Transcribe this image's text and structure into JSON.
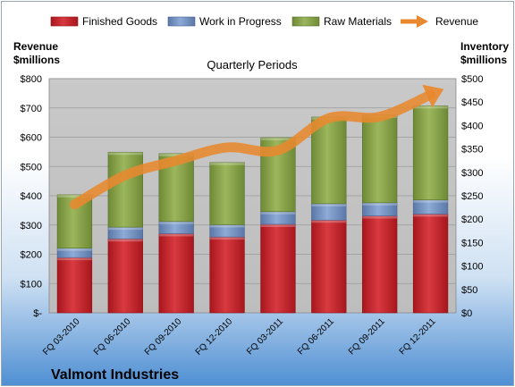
{
  "company": "Valmont Industries",
  "left_axis_title": [
    "Revenue",
    "$millions"
  ],
  "right_axis_title": [
    "Inventory",
    "$millions"
  ],
  "colors": {
    "finished_goods": "#c0262d",
    "work_in_progress": "#6f8fbf",
    "raw_materials": "#85a148",
    "revenue": "#e8892f",
    "plot_background": "#c3c3c3"
  },
  "chart_data": {
    "type": "bar",
    "stacked": true,
    "title": "Quarterly Periods",
    "categories": [
      "FQ 03-2010",
      "FQ 06-2010",
      "FQ 09-2010",
      "FQ 12-2010",
      "FQ 03-2011",
      "FQ 06-2011",
      "FQ 09-2011",
      "FQ 12-2011"
    ],
    "series": [
      {
        "name": "Finished Goods",
        "axis": "right",
        "values": [
          118,
          158,
          169,
          162,
          189,
          198,
          207,
          211
        ]
      },
      {
        "name": "Work in Progress",
        "axis": "right",
        "values": [
          20,
          25,
          26,
          26,
          27,
          35,
          28,
          30
        ]
      },
      {
        "name": "Raw Materials",
        "axis": "right",
        "values": [
          114,
          160,
          145,
          133,
          158,
          185,
          187,
          201
        ]
      },
      {
        "name": "Revenue",
        "type": "line",
        "axis": "left",
        "values": [
          370,
          470,
          520,
          565,
          555,
          665,
          670,
          745
        ]
      }
    ],
    "left_axis": {
      "ylim": [
        0,
        800
      ],
      "ticks": [
        "$-",
        "$100",
        "$200",
        "$300",
        "$400",
        "$500",
        "$600",
        "$700",
        "$800"
      ]
    },
    "right_axis": {
      "ylim": [
        0,
        500
      ],
      "ticks": [
        "$0",
        "$50",
        "$100",
        "$150",
        "$200",
        "$250",
        "$300",
        "$350",
        "$400",
        "$450",
        "$500"
      ]
    },
    "legend_position": "top",
    "grid": true
  }
}
